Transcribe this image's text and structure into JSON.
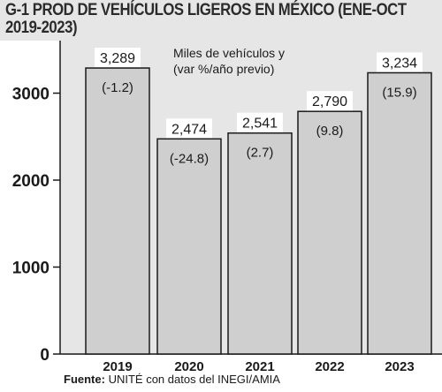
{
  "title": "G-1 PROD DE VEHÍCULOS LIGEROS EN MÉXICO (ENE-OCT 2019-2023)",
  "source_label": "Fuente:",
  "source_text": "UNITÉ con datos del INEGI/AMIA",
  "colors": {
    "bar_fill": "#cfcfcf",
    "bar_stroke": "#1a1a1a",
    "panel_bg": "#e6e6e6",
    "text": "#1a1a1a"
  },
  "chart_data": {
    "type": "bar",
    "annotation_lines": [
      "Miles de vehículos y",
      "(var %/año previo)"
    ],
    "categories": [
      "2019",
      "2020",
      "2021",
      "2022",
      "2023"
    ],
    "values": [
      3289,
      2474,
      2541,
      2790,
      3234
    ],
    "value_labels": [
      "3,289",
      "2,474",
      "2,541",
      "2,790",
      "3,234"
    ],
    "change_labels": [
      "(-1.2)",
      "(-24.8)",
      "(2.7)",
      "(9.8)",
      "(15.9)"
    ],
    "yticks": [
      0,
      1000,
      2000,
      3000
    ],
    "ylim": [
      0,
      3600
    ],
    "grid": false,
    "legend": "none"
  }
}
